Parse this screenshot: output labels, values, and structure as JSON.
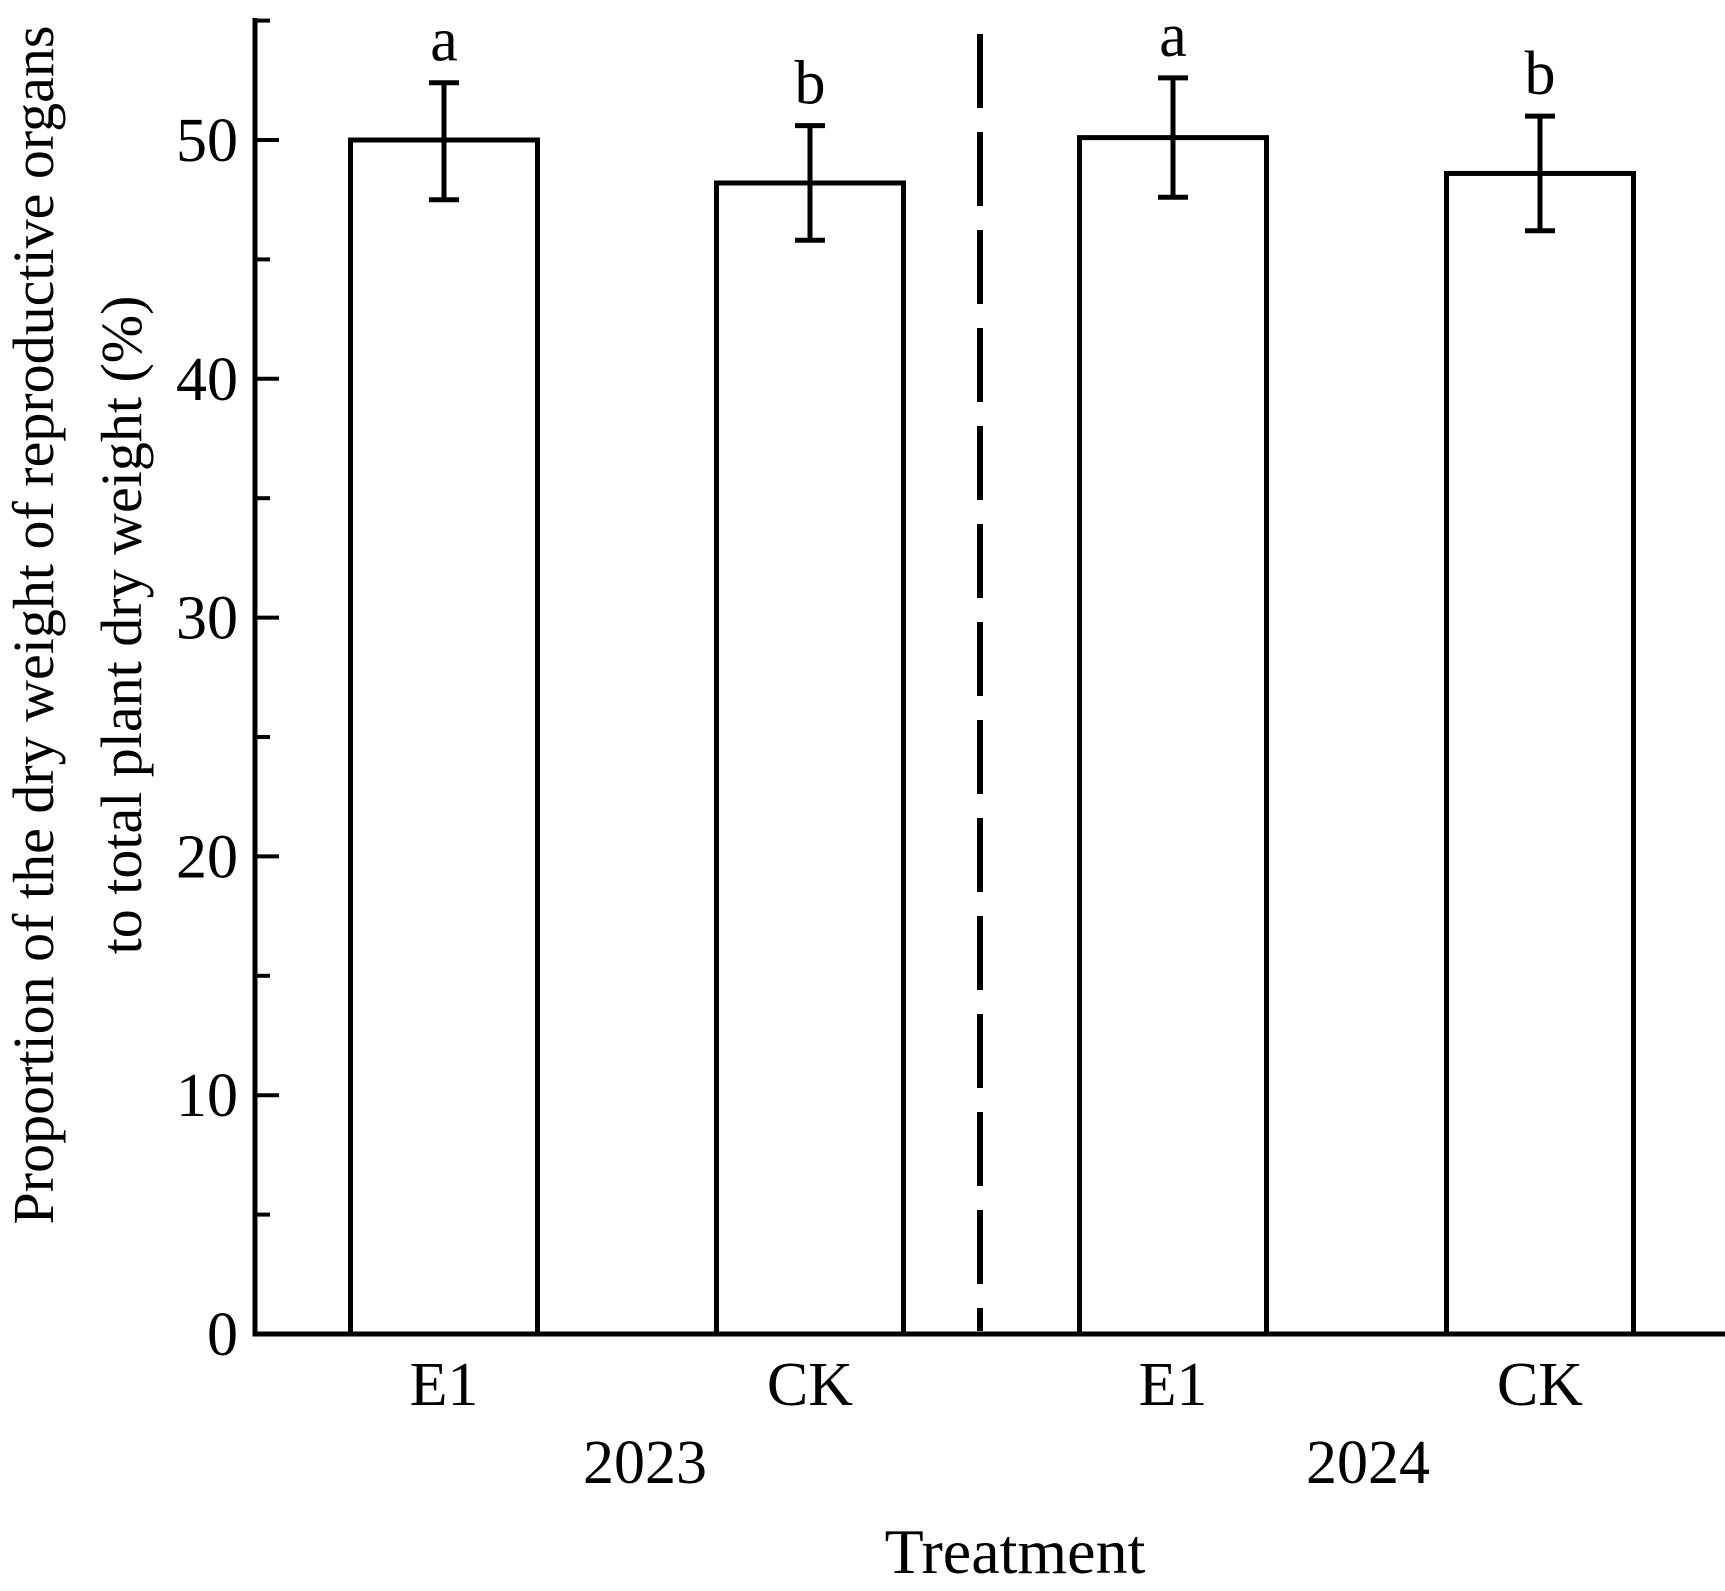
{
  "chart_data": {
    "type": "bar",
    "title": "",
    "xlabel": "Treatment",
    "ylabel_line1": "Proportion of the dry weight of reproductive organs",
    "ylabel_line2": "to total plant dry weight (%)",
    "ylim": [
      0,
      55
    ],
    "y_major_ticks": [
      0,
      10,
      20,
      30,
      40,
      50
    ],
    "y_minor_ticks": [
      5,
      15,
      25,
      35,
      45,
      55
    ],
    "grid": false,
    "legend": null,
    "bar_fill": "#ffffff",
    "line_color": "#000000",
    "background_color": "#ffffff",
    "groups": [
      {
        "year": "2023",
        "bars": [
          {
            "category": "E1",
            "value": 50.0,
            "err_low": 47.5,
            "err_high": 52.4,
            "sig_letter": "a"
          },
          {
            "category": "CK",
            "value": 48.2,
            "err_low": 45.8,
            "err_high": 50.6,
            "sig_letter": "b"
          }
        ]
      },
      {
        "year": "2024",
        "bars": [
          {
            "category": "E1",
            "value": 50.1,
            "err_low": 47.6,
            "err_high": 52.6,
            "sig_letter": "a"
          },
          {
            "category": "CK",
            "value": 48.6,
            "err_low": 46.2,
            "err_high": 51.0,
            "sig_letter": "b"
          }
        ]
      }
    ],
    "divider": {
      "style": "dashed",
      "between": [
        "2023",
        "2024"
      ]
    }
  }
}
